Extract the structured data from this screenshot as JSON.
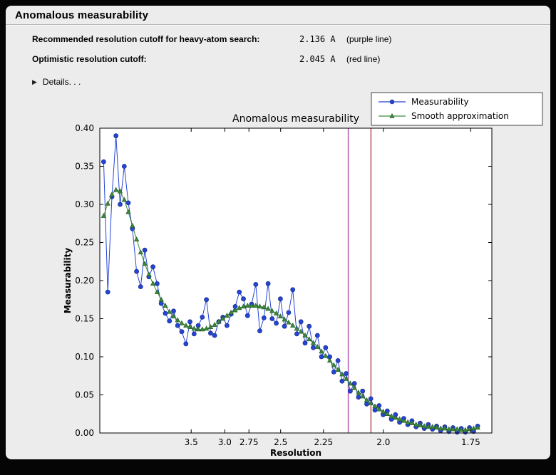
{
  "window": {
    "title": "Anomalous measurability"
  },
  "cutoffs": {
    "rows": [
      {
        "label": "Recommended resolution cutoff for heavy-atom search:",
        "value": "2.136 A",
        "note": "(purple line)"
      },
      {
        "label": "Optimistic resolution cutoff:",
        "value": "2.045 A",
        "note": "(red line)"
      }
    ]
  },
  "details": {
    "icon": "▶",
    "label": "Details. . ."
  },
  "chart_data": {
    "type": "line",
    "title": "Anomalous measurability",
    "xlabel": "Resolution",
    "ylabel": "Measurability",
    "x_axis_note": "x is 1/d^2; resolution d (A) decreases left to right",
    "xlim_invdsq": [
      0.0016,
      0.345
    ],
    "ylim": [
      0.0,
      0.4
    ],
    "grid": false,
    "legend_position": "upper right",
    "x_tick_labels": [
      "3.5",
      "3.0",
      "2.75",
      "2.5",
      "2.25",
      "2.0",
      "1.75"
    ],
    "y_tick_labels": [
      "0.00",
      "0.05",
      "0.10",
      "0.15",
      "0.20",
      "0.25",
      "0.30",
      "0.35",
      "0.40"
    ],
    "vlines": [
      {
        "label": "purple line",
        "resolution_A": 2.136,
        "color": "#aa44aa"
      },
      {
        "label": "red line",
        "resolution_A": 2.045,
        "color": "#aa3333"
      }
    ],
    "x_invdsq": [
      0.005,
      0.0086,
      0.0122,
      0.0158,
      0.0194,
      0.023,
      0.0266,
      0.0302,
      0.0338,
      0.0374,
      0.041,
      0.0446,
      0.0482,
      0.0518,
      0.0554,
      0.059,
      0.0626,
      0.0662,
      0.0698,
      0.0734,
      0.077,
      0.0806,
      0.0842,
      0.0878,
      0.0914,
      0.095,
      0.0986,
      0.1022,
      0.1058,
      0.1094,
      0.113,
      0.1166,
      0.1202,
      0.1238,
      0.1274,
      0.131,
      0.1346,
      0.1382,
      0.1418,
      0.1454,
      0.149,
      0.1526,
      0.1562,
      0.1598,
      0.1634,
      0.167,
      0.1706,
      0.1742,
      0.1778,
      0.1814,
      0.185,
      0.1886,
      0.1922,
      0.1958,
      0.1994,
      0.203,
      0.2066,
      0.2102,
      0.2138,
      0.2174,
      0.221,
      0.2246,
      0.2282,
      0.2318,
      0.2354,
      0.239,
      0.2426,
      0.2462,
      0.2498,
      0.2534,
      0.257,
      0.2606,
      0.2642,
      0.2678,
      0.2714,
      0.275,
      0.2786,
      0.2822,
      0.2858,
      0.2894,
      0.293,
      0.2966,
      0.3002,
      0.3038,
      0.3074,
      0.311,
      0.3146,
      0.3182,
      0.3218,
      0.3254,
      0.329,
      0.3326
    ],
    "series": [
      {
        "name": "Measurability",
        "color": "#2545d4",
        "marker_edge": "#1a2f8f",
        "marker": "circle",
        "values": [
          0.356,
          0.185,
          0.31,
          0.39,
          0.3,
          0.35,
          0.302,
          0.268,
          0.212,
          0.192,
          0.24,
          0.205,
          0.218,
          0.196,
          0.17,
          0.157,
          0.147,
          0.16,
          0.141,
          0.133,
          0.117,
          0.146,
          0.13,
          0.141,
          0.152,
          0.175,
          0.131,
          0.128,
          0.146,
          0.152,
          0.141,
          0.156,
          0.166,
          0.185,
          0.176,
          0.154,
          0.169,
          0.195,
          0.134,
          0.151,
          0.196,
          0.15,
          0.144,
          0.176,
          0.14,
          0.158,
          0.188,
          0.13,
          0.146,
          0.118,
          0.14,
          0.112,
          0.128,
          0.1,
          0.112,
          0.1,
          0.08,
          0.095,
          0.068,
          0.078,
          0.055,
          0.065,
          0.047,
          0.055,
          0.038,
          0.045,
          0.03,
          0.036,
          0.024,
          0.029,
          0.018,
          0.024,
          0.014,
          0.019,
          0.011,
          0.016,
          0.008,
          0.013,
          0.006,
          0.011,
          0.005,
          0.009,
          0.003,
          0.008,
          0.002,
          0.007,
          0.001,
          0.006,
          0.001,
          0.007,
          0.002,
          0.009
        ]
      },
      {
        "name": "Smooth approximation",
        "color": "#3c8a3c",
        "marker_edge": "#255c25",
        "marker": "triangle",
        "values": [
          0.285,
          0.301,
          0.313,
          0.319,
          0.317,
          0.306,
          0.29,
          0.272,
          0.254,
          0.237,
          0.222,
          0.208,
          0.196,
          0.185,
          0.175,
          0.167,
          0.159,
          0.153,
          0.148,
          0.144,
          0.141,
          0.139,
          0.137,
          0.136,
          0.136,
          0.137,
          0.139,
          0.142,
          0.146,
          0.15,
          0.154,
          0.158,
          0.161,
          0.164,
          0.166,
          0.167,
          0.167,
          0.167,
          0.166,
          0.165,
          0.163,
          0.16,
          0.157,
          0.153,
          0.149,
          0.145,
          0.141,
          0.137,
          0.133,
          0.128,
          0.123,
          0.118,
          0.113,
          0.107,
          0.101,
          0.095,
          0.089,
          0.083,
          0.077,
          0.071,
          0.065,
          0.059,
          0.053,
          0.048,
          0.043,
          0.039,
          0.035,
          0.031,
          0.028,
          0.025,
          0.022,
          0.02,
          0.018,
          0.016,
          0.014,
          0.013,
          0.011,
          0.01,
          0.009,
          0.008,
          0.008,
          0.007,
          0.006,
          0.006,
          0.005,
          0.005,
          0.005,
          0.004,
          0.004,
          0.005,
          0.006,
          0.007
        ]
      }
    ]
  }
}
